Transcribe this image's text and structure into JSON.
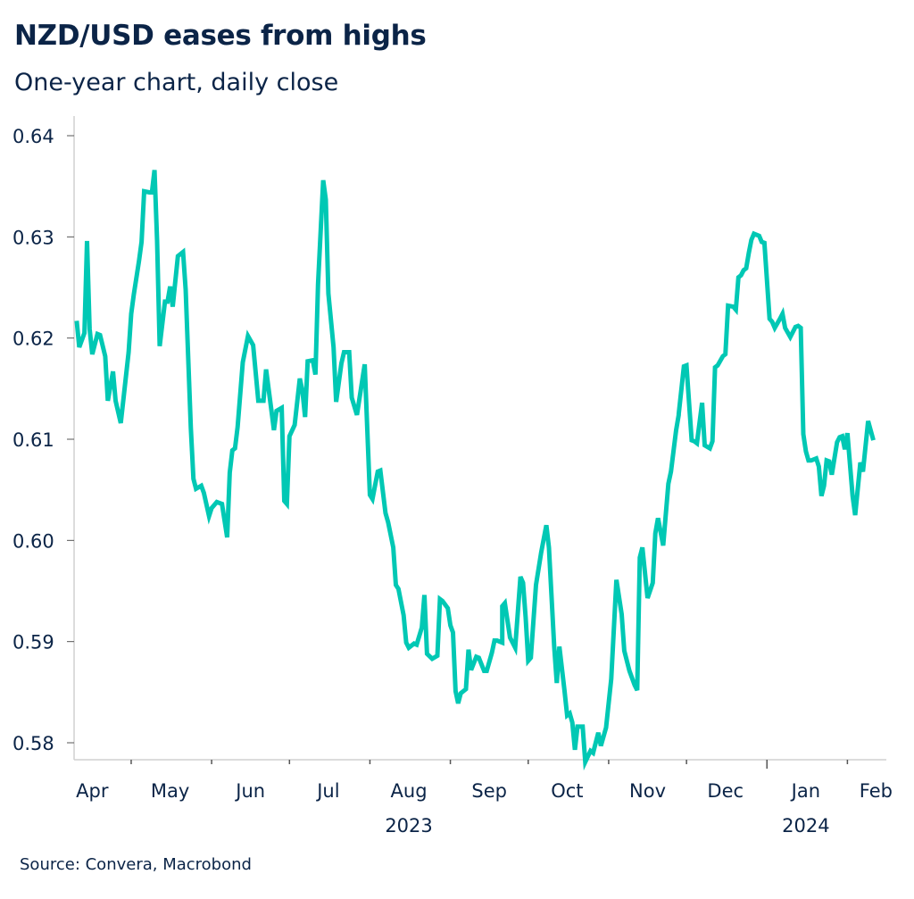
{
  "header": {
    "title": "NZD/USD eases from highs",
    "subtitle": "One-year chart, daily close"
  },
  "footer": {
    "source": "Source: Convera, Macrobond"
  },
  "colors": {
    "line": "#00C8B4",
    "text": "#0b2447",
    "axis": "#d0d0d0",
    "tick": "#555555"
  },
  "chart_data": {
    "type": "line",
    "title": "NZD/USD eases from highs",
    "subtitle": "One-year chart, daily close",
    "xlabel": "",
    "ylabel": "",
    "ylim": [
      0.578,
      0.641
    ],
    "yticks": [
      0.58,
      0.59,
      0.6,
      0.61,
      0.62,
      0.63,
      0.64
    ],
    "ytick_labels": [
      "0.58",
      "0.59",
      "0.60",
      "0.61",
      "0.62",
      "0.63",
      "0.64"
    ],
    "grid": false,
    "legend": "none",
    "x_start": "2023-04-09",
    "x_end": "2024-02-16",
    "month_labels": [
      {
        "label": "Apr",
        "date": "2023-04-16"
      },
      {
        "label": "May",
        "date": "2023-05-16"
      },
      {
        "label": "Jun",
        "date": "2023-06-16"
      },
      {
        "label": "Jul",
        "date": "2023-07-16"
      },
      {
        "label": "Aug",
        "date": "2023-08-16"
      },
      {
        "label": "Sep",
        "date": "2023-09-16"
      },
      {
        "label": "Oct",
        "date": "2023-10-16"
      },
      {
        "label": "Nov",
        "date": "2023-11-16"
      },
      {
        "label": "Dec",
        "date": "2023-12-16"
      },
      {
        "label": "Jan",
        "date": "2024-01-16"
      },
      {
        "label": "Feb",
        "date": "2024-02-12"
      }
    ],
    "month_ticks": [
      "2023-05-01",
      "2023-06-01",
      "2023-07-01",
      "2023-08-01",
      "2023-09-01",
      "2023-10-01",
      "2023-11-01",
      "2023-12-01",
      "2024-01-01",
      "2024-02-01"
    ],
    "year_ticks": [
      "2024-01-01"
    ],
    "year_labels": [
      {
        "label": "2023",
        "date": "2023-08-16"
      },
      {
        "label": "2024",
        "date": "2024-01-16"
      }
    ],
    "series": [
      {
        "name": "NZD/USD",
        "points": [
          [
            "2023-04-10",
            0.6217
          ],
          [
            "2023-04-11",
            0.6191
          ],
          [
            "2023-04-13",
            0.6205
          ],
          [
            "2023-04-14",
            0.6296
          ],
          [
            "2023-04-15",
            0.6209
          ],
          [
            "2023-04-16",
            0.6184
          ],
          [
            "2023-04-18",
            0.6204
          ],
          [
            "2023-04-19",
            0.6203
          ],
          [
            "2023-04-21",
            0.6182
          ],
          [
            "2023-04-22",
            0.6138
          ],
          [
            "2023-04-24",
            0.6167
          ],
          [
            "2023-04-25",
            0.6138
          ],
          [
            "2023-04-27",
            0.6116
          ],
          [
            "2023-04-28",
            0.6139
          ],
          [
            "2023-04-30",
            0.6186
          ],
          [
            "2023-05-01",
            0.6224
          ],
          [
            "2023-05-02",
            0.6243
          ],
          [
            "2023-05-04",
            0.6276
          ],
          [
            "2023-05-05",
            0.6295
          ],
          [
            "2023-05-06",
            0.6345
          ],
          [
            "2023-05-08",
            0.6344
          ],
          [
            "2023-05-09",
            0.6344
          ],
          [
            "2023-05-10",
            0.6366
          ],
          [
            "2023-05-11",
            0.6296
          ],
          [
            "2023-05-12",
            0.6192
          ],
          [
            "2023-05-14",
            0.6236
          ],
          [
            "2023-05-15",
            0.6236
          ],
          [
            "2023-05-16",
            0.6251
          ],
          [
            "2023-05-17",
            0.6231
          ],
          [
            "2023-05-19",
            0.6281
          ],
          [
            "2023-05-21",
            0.6285
          ],
          [
            "2023-05-22",
            0.6248
          ],
          [
            "2023-05-24",
            0.6111
          ],
          [
            "2023-05-25",
            0.6061
          ],
          [
            "2023-05-26",
            0.6051
          ],
          [
            "2023-05-28",
            0.6054
          ],
          [
            "2023-05-29",
            0.6047
          ],
          [
            "2023-05-31",
            0.6024
          ],
          [
            "2023-06-01",
            0.6032
          ],
          [
            "2023-06-02",
            0.6035
          ],
          [
            "2023-06-03",
            0.6038
          ],
          [
            "2023-06-05",
            0.6036
          ],
          [
            "2023-06-07",
            0.6003
          ],
          [
            "2023-06-08",
            0.6067
          ],
          [
            "2023-06-09",
            0.6089
          ],
          [
            "2023-06-10",
            0.6091
          ],
          [
            "2023-06-11",
            0.6112
          ],
          [
            "2023-06-13",
            0.6176
          ],
          [
            "2023-06-15",
            0.6202
          ],
          [
            "2023-06-17",
            0.6193
          ],
          [
            "2023-06-19",
            0.6138
          ],
          [
            "2023-06-21",
            0.6138
          ],
          [
            "2023-06-22",
            0.6169
          ],
          [
            "2023-06-24",
            0.6129
          ],
          [
            "2023-06-25",
            0.6109
          ],
          [
            "2023-06-26",
            0.6128
          ],
          [
            "2023-06-28",
            0.6131
          ],
          [
            "2023-06-29",
            0.6039
          ],
          [
            "2023-06-30",
            0.6036
          ],
          [
            "2023-07-01",
            0.6103
          ],
          [
            "2023-07-03",
            0.6114
          ],
          [
            "2023-07-05",
            0.616
          ],
          [
            "2023-07-06",
            0.6148
          ],
          [
            "2023-07-07",
            0.6122
          ],
          [
            "2023-07-08",
            0.6177
          ],
          [
            "2023-07-10",
            0.6178
          ],
          [
            "2023-07-11",
            0.6164
          ],
          [
            "2023-07-12",
            0.6253
          ],
          [
            "2023-07-14",
            0.6356
          ],
          [
            "2023-07-15",
            0.6337
          ],
          [
            "2023-07-16",
            0.6244
          ],
          [
            "2023-07-18",
            0.6191
          ],
          [
            "2023-07-19",
            0.6137
          ],
          [
            "2023-07-21",
            0.6175
          ],
          [
            "2023-07-22",
            0.6186
          ],
          [
            "2023-07-24",
            0.6186
          ],
          [
            "2023-07-25",
            0.6141
          ],
          [
            "2023-07-27",
            0.6124
          ],
          [
            "2023-07-30",
            0.6174
          ],
          [
            "2023-08-01",
            0.6045
          ],
          [
            "2023-08-02",
            0.6041
          ],
          [
            "2023-08-04",
            0.6068
          ],
          [
            "2023-08-05",
            0.6069
          ],
          [
            "2023-08-07",
            0.6027
          ],
          [
            "2023-08-08",
            0.6018
          ],
          [
            "2023-08-10",
            0.5993
          ],
          [
            "2023-08-11",
            0.5956
          ],
          [
            "2023-08-12",
            0.5952
          ],
          [
            "2023-08-14",
            0.5926
          ],
          [
            "2023-08-15",
            0.5899
          ],
          [
            "2023-08-16",
            0.5894
          ],
          [
            "2023-08-18",
            0.5898
          ],
          [
            "2023-08-19",
            0.5897
          ],
          [
            "2023-08-21",
            0.5914
          ],
          [
            "2023-08-22",
            0.5946
          ],
          [
            "2023-08-23",
            0.5888
          ],
          [
            "2023-08-25",
            0.5883
          ],
          [
            "2023-08-27",
            0.5886
          ],
          [
            "2023-08-28",
            0.5942
          ],
          [
            "2023-08-29",
            0.594
          ],
          [
            "2023-08-31",
            0.5933
          ],
          [
            "2023-09-01",
            0.5916
          ],
          [
            "2023-09-02",
            0.5909
          ],
          [
            "2023-09-03",
            0.5851
          ],
          [
            "2023-09-04",
            0.5839
          ],
          [
            "2023-09-05",
            0.5849
          ],
          [
            "2023-09-07",
            0.5853
          ],
          [
            "2023-09-08",
            0.5892
          ],
          [
            "2023-09-09",
            0.5872
          ],
          [
            "2023-09-11",
            0.5885
          ],
          [
            "2023-09-12",
            0.5884
          ],
          [
            "2023-09-14",
            0.5871
          ],
          [
            "2023-09-15",
            0.5871
          ],
          [
            "2023-09-17",
            0.5889
          ],
          [
            "2023-09-18",
            0.5901
          ],
          [
            "2023-09-19",
            0.5901
          ],
          [
            "2023-09-21",
            0.5899
          ],
          [
            "2023-09-21",
            0.5935
          ],
          [
            "2023-09-22",
            0.5938
          ],
          [
            "2023-09-24",
            0.5904
          ],
          [
            "2023-09-26",
            0.5894
          ],
          [
            "2023-09-28",
            0.5964
          ],
          [
            "2023-09-29",
            0.5958
          ],
          [
            "2023-09-30",
            0.5924
          ],
          [
            "2023-10-01",
            0.5881
          ],
          [
            "2023-10-02",
            0.5884
          ],
          [
            "2023-10-04",
            0.5956
          ],
          [
            "2023-10-06",
            0.5988
          ],
          [
            "2023-10-08",
            0.6015
          ],
          [
            "2023-10-09",
            0.5993
          ],
          [
            "2023-10-11",
            0.5895
          ],
          [
            "2023-10-12",
            0.5859
          ],
          [
            "2023-10-13",
            0.5895
          ],
          [
            "2023-10-15",
            0.5851
          ],
          [
            "2023-10-16",
            0.5827
          ],
          [
            "2023-10-17",
            0.5829
          ],
          [
            "2023-10-18",
            0.582
          ],
          [
            "2023-10-19",
            0.5793
          ],
          [
            "2023-10-20",
            0.5816
          ],
          [
            "2023-10-22",
            0.5816
          ],
          [
            "2023-10-23",
            0.5781
          ],
          [
            "2023-10-25",
            0.5792
          ],
          [
            "2023-10-26",
            0.579
          ],
          [
            "2023-10-28",
            0.581
          ],
          [
            "2023-10-29",
            0.5797
          ],
          [
            "2023-10-31",
            0.5815
          ],
          [
            "2023-11-02",
            0.5863
          ],
          [
            "2023-11-04",
            0.5961
          ],
          [
            "2023-11-06",
            0.5927
          ],
          [
            "2023-11-07",
            0.5891
          ],
          [
            "2023-11-09",
            0.5871
          ],
          [
            "2023-11-11",
            0.5857
          ],
          [
            "2023-11-12",
            0.5852
          ],
          [
            "2023-11-13",
            0.5983
          ],
          [
            "2023-11-14",
            0.5993
          ],
          [
            "2023-11-16",
            0.5943
          ],
          [
            "2023-11-18",
            0.5958
          ],
          [
            "2023-11-19",
            0.6007
          ],
          [
            "2023-11-20",
            0.6022
          ],
          [
            "2023-11-22",
            0.5995
          ],
          [
            "2023-11-24",
            0.6056
          ],
          [
            "2023-11-25",
            0.6068
          ],
          [
            "2023-11-27",
            0.6109
          ],
          [
            "2023-11-28",
            0.6124
          ],
          [
            "2023-11-28",
            0.6125
          ],
          [
            "2023-11-30",
            0.6172
          ],
          [
            "2023-12-01",
            0.6173
          ],
          [
            "2023-12-03",
            0.6099
          ],
          [
            "2023-12-04",
            0.6098
          ],
          [
            "2023-12-05",
            0.6096
          ],
          [
            "2023-12-07",
            0.6136
          ],
          [
            "2023-12-08",
            0.6094
          ],
          [
            "2023-12-10",
            0.6091
          ],
          [
            "2023-12-11",
            0.6098
          ],
          [
            "2023-12-12",
            0.6171
          ],
          [
            "2023-12-13",
            0.6173
          ],
          [
            "2023-12-15",
            0.6182
          ],
          [
            "2023-12-16",
            0.6184
          ],
          [
            "2023-12-17",
            0.6232
          ],
          [
            "2023-12-19",
            0.6231
          ],
          [
            "2023-12-20",
            0.6228
          ],
          [
            "2023-12-21",
            0.626
          ],
          [
            "2023-12-22",
            0.6262
          ],
          [
            "2023-12-23",
            0.6267
          ],
          [
            "2023-12-24",
            0.6269
          ],
          [
            "2023-12-25",
            0.6284
          ],
          [
            "2023-12-26",
            0.6297
          ],
          [
            "2023-12-27",
            0.6303
          ],
          [
            "2023-12-29",
            0.6301
          ],
          [
            "2023-12-30",
            0.6295
          ],
          [
            "2023-12-31",
            0.6294
          ],
          [
            "2024-01-02",
            0.6219
          ],
          [
            "2024-01-03",
            0.6216
          ],
          [
            "2024-01-04",
            0.621
          ],
          [
            "2024-01-06",
            0.6219
          ],
          [
            "2024-01-07",
            0.6224
          ],
          [
            "2024-01-08",
            0.621
          ],
          [
            "2024-01-10",
            0.6201
          ],
          [
            "2024-01-11",
            0.6206
          ],
          [
            "2024-01-12",
            0.6211
          ],
          [
            "2024-01-13",
            0.6212
          ],
          [
            "2024-01-14",
            0.621
          ],
          [
            "2024-01-15",
            0.6105
          ],
          [
            "2024-01-16",
            0.6088
          ],
          [
            "2024-01-17",
            0.6079
          ],
          [
            "2024-01-18",
            0.6079
          ],
          [
            "2024-01-20",
            0.6081
          ],
          [
            "2024-01-21",
            0.6073
          ],
          [
            "2024-01-22",
            0.6044
          ],
          [
            "2024-01-23",
            0.6054
          ],
          [
            "2024-01-24",
            0.6079
          ],
          [
            "2024-01-25",
            0.6078
          ],
          [
            "2024-01-26",
            0.6065
          ],
          [
            "2024-01-28",
            0.6097
          ],
          [
            "2024-01-29",
            0.6102
          ],
          [
            "2024-01-30",
            0.6103
          ],
          [
            "2024-01-31",
            0.609
          ],
          [
            "2024-02-01",
            0.6106
          ],
          [
            "2024-02-03",
            0.6044
          ],
          [
            "2024-02-04",
            0.6025
          ],
          [
            "2024-02-06",
            0.6077
          ],
          [
            "2024-02-07",
            0.6068
          ],
          [
            "2024-02-09",
            0.6118
          ],
          [
            "2024-02-11",
            0.6099
          ]
        ]
      }
    ]
  }
}
